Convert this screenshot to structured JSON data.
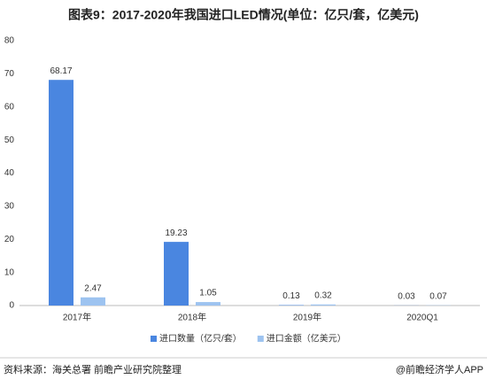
{
  "chart_data": {
    "type": "bar",
    "title": "图表9：2017-2020年我国进口LED情况(单位：亿只/套，亿美元)",
    "categories": [
      "2017年",
      "2018年",
      "2019年",
      "2020Q1"
    ],
    "series": [
      {
        "name": "进口数量（亿只/套）",
        "color": "#4a86e0",
        "values": [
          68.17,
          19.23,
          0.13,
          0.03
        ]
      },
      {
        "name": "进口金额（亿美元）",
        "color": "#9dc3f0",
        "values": [
          2.47,
          1.05,
          0.32,
          0.07
        ]
      }
    ],
    "ylim": [
      0,
      80
    ],
    "yticks": [
      0,
      10,
      20,
      30,
      40,
      50,
      60,
      70,
      80
    ],
    "grid": false,
    "legend": "bottom",
    "source": "资料来源：海关总署 前瞻产业研究院整理",
    "credit": "@前瞻经济学人APP"
  }
}
